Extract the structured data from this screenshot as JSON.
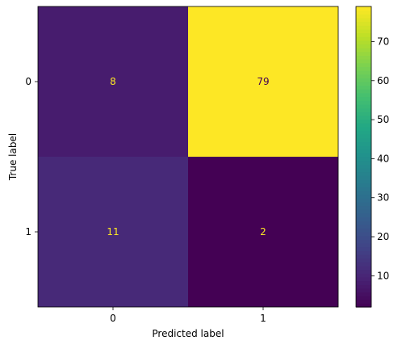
{
  "chart_data": {
    "type": "heatmap",
    "title": "",
    "xlabel": "Predicted label",
    "ylabel": "True label",
    "x_categories": [
      "0",
      "1"
    ],
    "y_categories": [
      "0",
      "1"
    ],
    "matrix": [
      [
        8,
        79
      ],
      [
        11,
        2
      ]
    ],
    "colormap": "viridis",
    "value_range": [
      2,
      79
    ],
    "colorbar": {
      "ticks": [
        10,
        20,
        30,
        40,
        50,
        60,
        70
      ],
      "tick_labels": [
        "10",
        "20",
        "30",
        "40",
        "50",
        "60",
        "70"
      ]
    },
    "cell_text_colors": {
      "on_dark": "#fde725",
      "on_light": "#440154"
    }
  }
}
